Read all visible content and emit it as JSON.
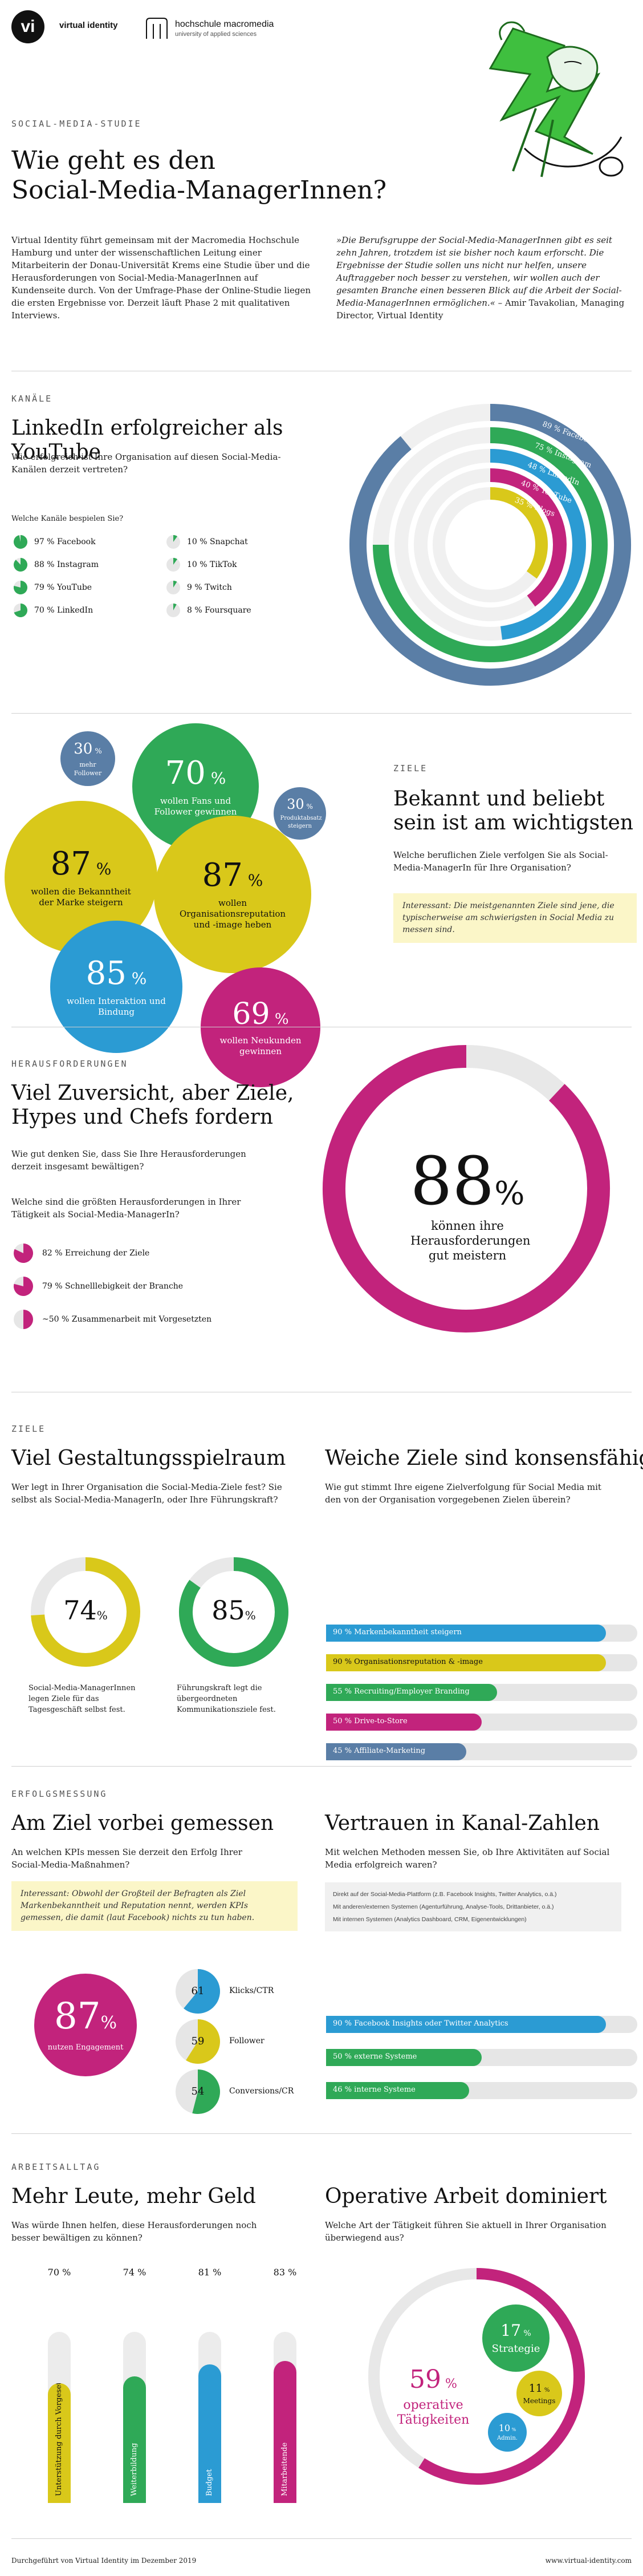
{
  "header": {
    "logo_vi_mark": "vi",
    "logo_vi_text": "virtual identity",
    "logo_hm_name": "hochschule macromedia",
    "logo_hm_sub": "university of applied sciences"
  },
  "intro": {
    "kicker": "SOCIAL-MEDIA-STUDIE",
    "title_line1": "Wie geht es den",
    "title_line2": "Social-Media-ManagerInnen?",
    "body": "Virtual Identity führt gemeinsam mit der Macromedia Hochschule Hamburg und unter der wissenschaftlichen Leitung einer Mitarbeiterin der Donau-Universität Krems eine Studie über und die Herausforderungen von Social-Media-ManagerInnen auf Kundenseite durch. Von der Umfrage-Phase der Online-Studie liegen die ersten Ergebnisse vor. Derzeit läuft Phase 2 mit qualitativen Interviews.",
    "quote": "»Die Berufsgruppe der Social-Media-ManagerInnen gibt es seit zehn Jahren, trotzdem ist sie bisher noch kaum erforscht. Die Ergebnisse der Studie sollen uns nicht nur helfen, unsere Auftraggeber noch besser zu verstehen, wir wollen auch der gesamten Branche einen besseren Blick auf die Arbeit der Social-Media-ManagerInnen ermöglichen.«",
    "quote_author": "– Amir Tavakolian, Managing Director, Virtual Identity"
  },
  "kanaele": {
    "kicker": "KANÄLE",
    "title": "LinkedIn erfolgreicher als YouTube",
    "question": "Wie erfolgreich ist Ihre Organisation auf diesen Social-Media-Kanälen derzeit vertreten?",
    "legend_title": "Welche Kanäle bespielen Sie?"
  },
  "ziele1": {
    "kicker": "ZIELE",
    "title_line1": "Bekannt und beliebt",
    "title_line2": "sein ist am wichtigsten",
    "question": "Welche beruflichen Ziele verfolgen Sie als Social-Media-ManagerIn für Ihre Organisation?",
    "note": "Interessant: Die meistgenannten Ziele sind jene, die typischerweise am schwierigsten in Social Media zu messen sind."
  },
  "herausforderungen": {
    "kicker": "HERAUSFORDERUNGEN",
    "title_line1": "Viel Zuversicht, aber Ziele,",
    "title_line2": "Hypes und Chefs fordern",
    "question1": "Wie gut denken Sie, dass Sie Ihre Herausforderungen derzeit insgesamt bewältigen?",
    "question2": "Welche sind die größten Herausforderungen in Ihrer Tätigkeit als Social-Media-ManagerIn?",
    "big_value": "88",
    "big_unit": "%",
    "big_text": "können ihre Herausforderungen gut meistern"
  },
  "ziele2": {
    "kicker": "ZIELE",
    "title_left": "Viel Gestaltungsspielraum",
    "question_left": "Wer legt in Ihrer Organisation die Social-Media-Ziele fest? Sie selbst als Social-Media-ManagerIn, oder Ihre Führungskraft?",
    "donut1_value": "74",
    "donut1_text": "Social-Media-ManagerInnen legen Ziele für das Tagesgeschäft selbst fest.",
    "donut2_value": "85",
    "donut2_text": "Führungskraft legt die übergeordneten Kommunikationsziele fest.",
    "title_right": "Weiche Ziele sind konsensfähig",
    "question_right": "Wie gut stimmt Ihre eigene Zielverfolgung für Social Media mit den von der Organisation vorgegebenen Zielen überein?"
  },
  "erfolgsmessung": {
    "kicker": "ERFOLGSMESSUNG",
    "title_left": "Am Ziel vorbei gemessen",
    "question_left": "An welchen KPIs messen Sie derzeit den Erfolg Ihrer Social-Media-Maßnahmen?",
    "note": "Interessant: Obwohl der Großteil der Befragten als Ziel Markenbekanntheit und Reputation nennt, werden KPIs gemessen, die damit (laut Facebook) nichts zu tun haben.",
    "big_value": "87",
    "big_text": "nutzen Engagement",
    "title_right": "Vertrauen in Kanal-Zahlen",
    "question_right": "Mit welchen Methoden messen Sie, ob Ihre Aktivitäten auf Social Media erfolgreich waren?",
    "method_notes": [
      "Direkt auf der Social-Media-Plattform (z.B. Facebook Insights, Twitter Analytics, o.ä.)",
      "Mit anderen/externen Systemen (Agenturführung, Analyse-Tools, Drittanbieter, o.ä.)",
      "Mit internen Systemen (Analytics Dashboard, CRM, Eigenentwicklungen)"
    ]
  },
  "arbeitsalltag": {
    "kicker": "ARBEITSALLTAG",
    "title_left": "Mehr Leute, mehr Geld",
    "question_left": "Was würde Ihnen helfen, diese Herausforderungen noch besser bewältigen zu können?",
    "title_right": "Operative Arbeit dominiert",
    "question_right": "Welche Art der Tätigkeit führen Sie aktuell in Ihrer Organisation überwiegend aus?"
  },
  "footer": {
    "left": "Durchgeführt von Virtual Identity im Dezember 2019",
    "right": "www.virtual-identity.com"
  },
  "colors": {
    "blue": "#2b9bd3",
    "green": "#2fa957",
    "yellow": "#d9c81a",
    "magenta": "#c2237c",
    "slate": "#5a7ea6",
    "light": "#e6e6e6"
  },
  "chart_data": [
    {
      "type": "radial_bar",
      "id": "kanaele",
      "categories": [
        "Facebook",
        "Instagram",
        "LinkedIn",
        "YouTube",
        "Blogs"
      ],
      "values": [
        89,
        75,
        48,
        40,
        35
      ],
      "labels": [
        "89 % Facebook",
        "75 % Instagram",
        "48 % LinkedIn",
        "40 % YouTube",
        "35 % Blogs"
      ],
      "colors": [
        "#5a7ea6",
        "#2fa957",
        "#2b9bd3",
        "#c2237c",
        "#d9c81a"
      ]
    },
    {
      "type": "pie",
      "id": "bespielen",
      "items": [
        {
          "label": "97 % Facebook",
          "value": 97,
          "color": "#2fa957"
        },
        {
          "label": "88 % Instagram",
          "value": 88,
          "color": "#2fa957"
        },
        {
          "label": "79 % YouTube",
          "value": 79,
          "color": "#2fa957"
        },
        {
          "label": "70 % LinkedIn",
          "value": 70,
          "color": "#2fa957"
        },
        {
          "label": "10 % Snapchat",
          "value": 10,
          "color": "#2fa957"
        },
        {
          "label": "10 % TikTok",
          "value": 10,
          "color": "#2fa957"
        },
        {
          "label": "9 % Twitch",
          "value": 9,
          "color": "#2fa957"
        },
        {
          "label": "8 % Foursquare",
          "value": 8,
          "color": "#2fa957"
        }
      ]
    },
    {
      "type": "bubble",
      "id": "ziele",
      "items": [
        {
          "value": "30",
          "label": "mehr Follower",
          "color": "#5a7ea6"
        },
        {
          "value": "70",
          "label": "wollen Fans und Follower gewinnen",
          "color": "#2fa957"
        },
        {
          "value": "30",
          "label": "Produktabsatz steigern",
          "color": "#5a7ea6"
        },
        {
          "value": "87",
          "label": "wollen die Bekanntheit der Marke steigern",
          "color": "#d9c81a"
        },
        {
          "value": "87",
          "label": "wollen Organisationsreputation und -image heben",
          "color": "#d9c81a"
        },
        {
          "value": "85",
          "label": "wollen Interaktion und Bindung",
          "color": "#2b9bd3"
        },
        {
          "value": "69",
          "label": "wollen Neukunden gewinnen",
          "color": "#c2237c"
        }
      ]
    },
    {
      "type": "pie",
      "id": "herausforderungen",
      "items": [
        {
          "label": "82 % Erreichung der Ziele",
          "value": 82,
          "color": "#c2237c"
        },
        {
          "label": "79 % Schnelllebigkeit der Branche",
          "value": 79,
          "color": "#c2237c"
        },
        {
          "label": "~50 % Zusammenarbeit mit Vorgesetzten",
          "value": 50,
          "color": "#c2237c"
        }
      ],
      "gauge": {
        "value": 88,
        "color": "#c2237c"
      }
    },
    {
      "type": "bar",
      "id": "konsens",
      "orientation": "horizontal",
      "items": [
        {
          "label": "90 % Markenbekanntheit steigern",
          "value": 90,
          "color": "#2b9bd3"
        },
        {
          "label": "90 % Organisationsreputation & -image",
          "value": 90,
          "color": "#d9c81a"
        },
        {
          "label": "55 % Recruiting/Employer Branding",
          "value": 55,
          "color": "#2fa957"
        },
        {
          "label": "50 % Drive-to-Store",
          "value": 50,
          "color": "#c2237c"
        },
        {
          "label": "45 % Affiliate-Marketing",
          "value": 45,
          "color": "#5a7ea6"
        }
      ],
      "xlim": [
        0,
        100
      ]
    },
    {
      "type": "pie",
      "id": "kpis",
      "items": [
        {
          "value": "61",
          "label": "Klicks/CTR",
          "color": "#2b9bd3"
        },
        {
          "value": "59",
          "label": "Follower",
          "color": "#d9c81a"
        },
        {
          "value": "54",
          "label": "Conversions/CR",
          "color": "#2fa957"
        }
      ]
    },
    {
      "type": "bar",
      "id": "methoden",
      "orientation": "horizontal",
      "items": [
        {
          "label": "90 % Facebook Insights oder Twitter Analytics",
          "value": 90,
          "color": "#2b9bd3"
        },
        {
          "label": "50 % externe Systeme",
          "value": 50,
          "color": "#2fa957"
        },
        {
          "label": "46 % interne Systeme",
          "value": 46,
          "color": "#2fa957"
        }
      ],
      "xlim": [
        0,
        100
      ]
    },
    {
      "type": "bar",
      "id": "hilfe",
      "orientation": "vertical",
      "items": [
        {
          "label": "Unterstützung durch Vorgesetzte",
          "pct": "70 %",
          "value": 70,
          "color": "#d9c81a"
        },
        {
          "label": "Weiterbildung",
          "pct": "74 %",
          "value": 74,
          "color": "#2fa957"
        },
        {
          "label": "Budget",
          "pct": "81 %",
          "value": 81,
          "color": "#2b9bd3"
        },
        {
          "label": "Mitarbeitende",
          "pct": "83 %",
          "value": 83,
          "color": "#c2237c"
        }
      ],
      "ylim": [
        0,
        100
      ]
    },
    {
      "type": "bubble",
      "id": "taetigkeit",
      "items": [
        {
          "value": "59",
          "label": "operative Tätigkeiten",
          "color": "#c2237c"
        },
        {
          "value": "17",
          "label": "Strategie",
          "color": "#2fa957"
        },
        {
          "value": "11",
          "label": "Meetings",
          "color": "#d9c81a"
        },
        {
          "value": "10",
          "label": "Admin.",
          "color": "#2b9bd3"
        }
      ]
    }
  ]
}
